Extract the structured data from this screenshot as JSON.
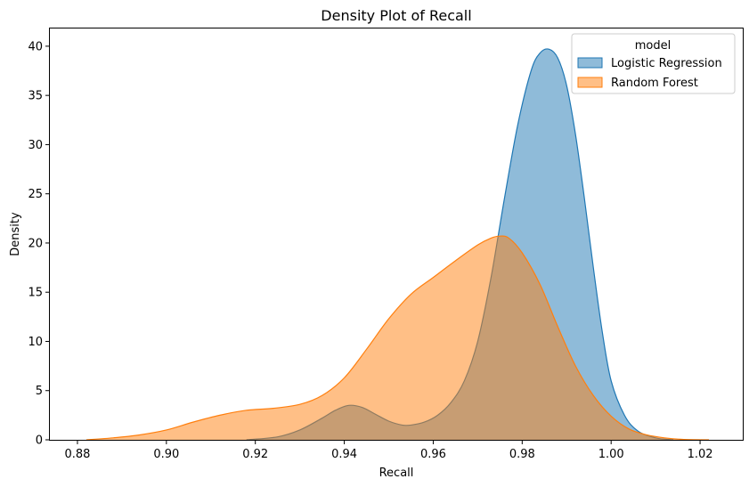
{
  "chart_data": {
    "type": "area",
    "title": "Density Plot of Recall",
    "xlabel": "Recall",
    "ylabel": "Density",
    "xlim": [
      0.8738,
      1.0296
    ],
    "ylim": [
      0,
      41.8
    ],
    "xticks": [
      0.88,
      0.9,
      0.92,
      0.94,
      0.96,
      0.98,
      1.0,
      1.02
    ],
    "xtick_labels": [
      "0.88",
      "0.90",
      "0.92",
      "0.94",
      "0.96",
      "0.98",
      "1.00",
      "1.02"
    ],
    "yticks": [
      0,
      5,
      10,
      15,
      20,
      25,
      30,
      35,
      40
    ],
    "ytick_labels": [
      "0",
      "5",
      "10",
      "15",
      "20",
      "25",
      "30",
      "35",
      "40"
    ],
    "grid": false,
    "legend": {
      "title": "model",
      "placement": "top-right"
    },
    "series": [
      {
        "name": "Logistic Regression",
        "color": "#1f77b4",
        "x": [
          0.918,
          0.925,
          0.93,
          0.935,
          0.938,
          0.941,
          0.944,
          0.947,
          0.95,
          0.953,
          0.955,
          0.958,
          0.961,
          0.964,
          0.967,
          0.97,
          0.973,
          0.976,
          0.979,
          0.982,
          0.984,
          0.986,
          0.988,
          0.99,
          0.992,
          0.994,
          0.996,
          0.998,
          1.0,
          1.003,
          1.006,
          1.01,
          1.014
        ],
        "y": [
          0,
          0.3,
          1.0,
          2.2,
          3.0,
          3.5,
          3.3,
          2.6,
          1.9,
          1.5,
          1.5,
          1.8,
          2.5,
          3.8,
          6.0,
          10.0,
          16.5,
          24.5,
          32.0,
          37.5,
          39.3,
          39.7,
          38.8,
          36.0,
          31.0,
          24.5,
          17.5,
          11.0,
          6.0,
          2.5,
          0.9,
          0.2,
          0
        ]
      },
      {
        "name": "Random Forest",
        "color": "#ff7f0e",
        "x": [
          0.882,
          0.888,
          0.894,
          0.9,
          0.906,
          0.912,
          0.918,
          0.924,
          0.93,
          0.935,
          0.94,
          0.945,
          0.95,
          0.955,
          0.96,
          0.965,
          0.97,
          0.973,
          0.975,
          0.977,
          0.98,
          0.984,
          0.988,
          0.992,
          0.996,
          1.0,
          1.004,
          1.008,
          1.012,
          1.016,
          1.022
        ],
        "y": [
          0,
          0.2,
          0.5,
          1.0,
          1.8,
          2.5,
          3.0,
          3.2,
          3.6,
          4.5,
          6.3,
          9.2,
          12.3,
          14.8,
          16.5,
          18.2,
          19.8,
          20.5,
          20.7,
          20.5,
          19.0,
          15.8,
          11.5,
          7.5,
          4.5,
          2.4,
          1.1,
          0.5,
          0.2,
          0.05,
          0
        ]
      }
    ]
  }
}
